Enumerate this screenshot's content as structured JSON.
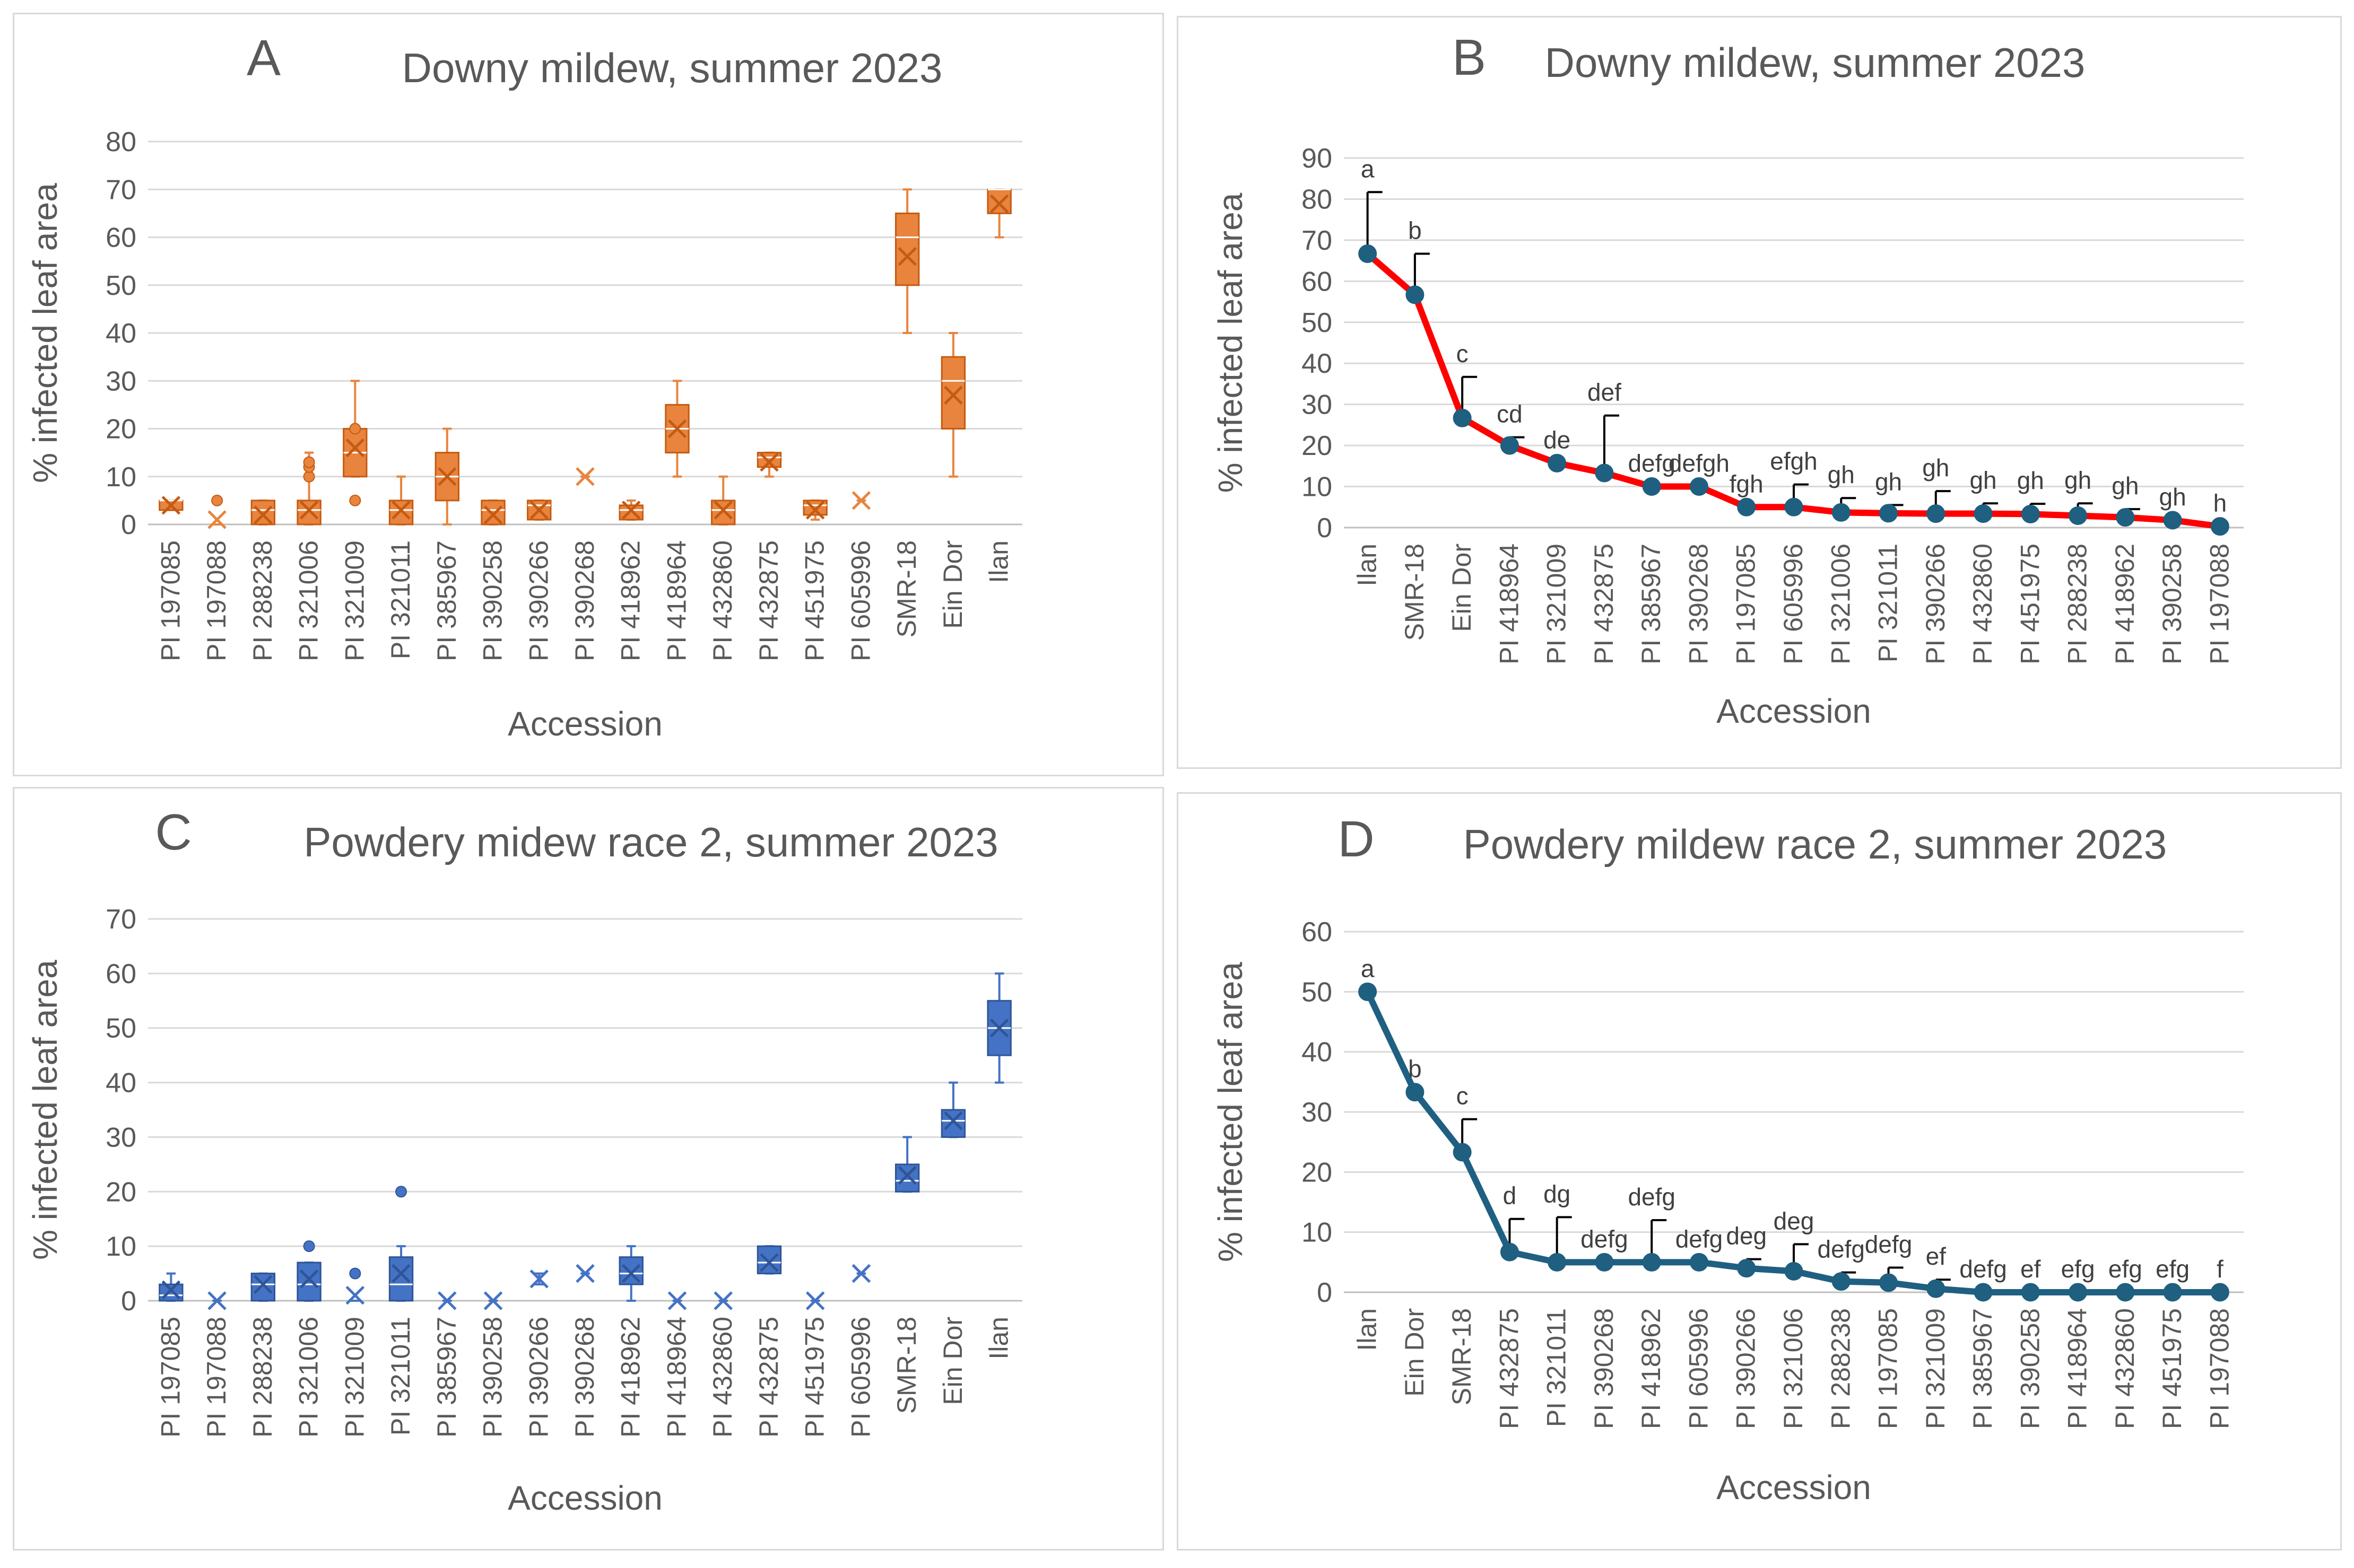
{
  "colors": {
    "orange": "#e8843e",
    "orangeDark": "#c55a11",
    "blue": "#4472c4",
    "blueDark": "#2f5597",
    "red": "#ff0000",
    "teal": "#1f6082",
    "axisText": "#595959",
    "grid": "#d9d9d9"
  },
  "chart_data": [
    {
      "type": "box",
      "panel_letter": "A",
      "title": "Downy mildew, summer 2023",
      "xlabel": "Accession",
      "ylabel": "% infected leaf area",
      "ylim": [
        0,
        80
      ],
      "yticks": [
        0,
        10,
        20,
        30,
        40,
        50,
        60,
        70,
        80
      ],
      "categories": [
        "PI 197085",
        "PI 197088",
        "PI 288238",
        "PI 321006",
        "PI 321009",
        "PI 321011",
        "PI 385967",
        "PI 390258",
        "PI 390266",
        "PI 390268",
        "PI 418962",
        "PI 418964",
        "PI 432860",
        "PI 432875",
        "PI 451975",
        "PI 605996",
        "SMR-18",
        "Ein Dor",
        "Ilan"
      ],
      "boxes": [
        {
          "min": 3,
          "q1": 3,
          "median": 5,
          "q3": 5,
          "max": 5,
          "mean": 4,
          "outliers": []
        },
        {
          "min": 0,
          "q1": 0,
          "median": 0,
          "q3": 0,
          "max": 0,
          "mean": 1,
          "outliers": [
            5
          ]
        },
        {
          "min": 0,
          "q1": 0,
          "median": 3,
          "q3": 5,
          "max": 5,
          "mean": 2,
          "outliers": []
        },
        {
          "min": 0,
          "q1": 0,
          "median": 3,
          "q3": 5,
          "max": 15,
          "mean": 3,
          "outliers": [
            10,
            12,
            13
          ]
        },
        {
          "min": 10,
          "q1": 10,
          "median": 15,
          "q3": 20,
          "max": 30,
          "mean": 16,
          "outliers": [
            5,
            20
          ]
        },
        {
          "min": 0,
          "q1": 0,
          "median": 3,
          "q3": 5,
          "max": 10,
          "mean": 3,
          "outliers": []
        },
        {
          "min": 0,
          "q1": 5,
          "median": 10,
          "q3": 15,
          "max": 20,
          "mean": 10,
          "outliers": []
        },
        {
          "min": 0,
          "q1": 0,
          "median": 3,
          "q3": 5,
          "max": 5,
          "mean": 2,
          "outliers": []
        },
        {
          "min": 1,
          "q1": 1,
          "median": 4,
          "q3": 5,
          "max": 5,
          "mean": 3,
          "outliers": []
        },
        {
          "min": 10,
          "q1": 10,
          "median": 10,
          "q3": 10,
          "max": 10,
          "mean": 10,
          "outliers": []
        },
        {
          "min": 1,
          "q1": 1,
          "median": 3,
          "q3": 4,
          "max": 5,
          "mean": 3,
          "outliers": []
        },
        {
          "min": 10,
          "q1": 15,
          "median": 20,
          "q3": 25,
          "max": 30,
          "mean": 20,
          "outliers": []
        },
        {
          "min": 0,
          "q1": 0,
          "median": 3,
          "q3": 5,
          "max": 10,
          "mean": 3,
          "outliers": []
        },
        {
          "min": 10,
          "q1": 12,
          "median": 14,
          "q3": 15,
          "max": 15,
          "mean": 13,
          "outliers": []
        },
        {
          "min": 1,
          "q1": 2,
          "median": 4,
          "q3": 5,
          "max": 5,
          "mean": 3,
          "outliers": []
        },
        {
          "min": 5,
          "q1": 5,
          "median": 5,
          "q3": 5,
          "max": 5,
          "mean": 5,
          "outliers": []
        },
        {
          "min": 40,
          "q1": 50,
          "median": 60,
          "q3": 65,
          "max": 70,
          "mean": 56,
          "outliers": []
        },
        {
          "min": 10,
          "q1": 20,
          "median": 30,
          "q3": 35,
          "max": 40,
          "mean": 27,
          "outliers": []
        },
        {
          "min": 60,
          "q1": 65,
          "median": 70,
          "q3": 70,
          "max": 70,
          "mean": 67,
          "outliers": []
        }
      ]
    },
    {
      "type": "line",
      "panel_letter": "B",
      "title": "Downy mildew, summer 2023",
      "xlabel": "Accession",
      "ylabel": "% infected leaf area",
      "ylim": [
        0,
        90
      ],
      "yticks": [
        0,
        10,
        20,
        30,
        40,
        50,
        60,
        70,
        80,
        90
      ],
      "categories": [
        "Ilan",
        "SMR-18",
        "Ein Dor",
        "PI 418964",
        "PI 321009",
        "PI 432875",
        "PI 385967",
        "PI 390268",
        "PI 197085",
        "PI 605996",
        "PI 321006",
        "PI 321011",
        "PI 390266",
        "PI 432860",
        "PI 451975",
        "PI 288238",
        "PI 418962",
        "PI 390258",
        "PI 197088"
      ],
      "values": [
        66.7,
        56.7,
        26.7,
        20,
        15.7,
        13.3,
        10,
        10,
        5,
        5,
        3.7,
        3.5,
        3.4,
        3.4,
        3.3,
        2.9,
        2.5,
        1.8,
        0.3
      ],
      "errors": [
        15,
        10,
        10,
        2,
        0,
        14,
        0,
        0,
        0,
        5.5,
        3.5,
        2,
        5.5,
        2.5,
        2.5,
        3,
        2,
        0,
        0
      ],
      "letters": [
        "a",
        "b",
        "c",
        "cd",
        "de",
        "def",
        "defg",
        "defgh",
        "fgh",
        "efgh",
        "gh",
        "gh",
        "gh",
        "gh",
        "gh",
        "gh",
        "gh",
        "gh",
        "h"
      ]
    },
    {
      "type": "box",
      "panel_letter": "C",
      "title": "Powdery midew race 2, summer 2023",
      "xlabel": "Accession",
      "ylabel": "% infected leaf area",
      "ylim": [
        0,
        70
      ],
      "yticks": [
        0,
        10,
        20,
        30,
        40,
        50,
        60,
        70
      ],
      "categories": [
        "PI 197085",
        "PI 197088",
        "PI 288238",
        "PI 321006",
        "PI 321009",
        "PI 321011",
        "PI 385967",
        "PI 390258",
        "PI 390266",
        "PI 390268",
        "PI 418962",
        "PI 418964",
        "PI 432860",
        "PI 432875",
        "PI 451975",
        "PI 605996",
        "SMR-18",
        "Ein Dor",
        "Ilan"
      ],
      "boxes": [
        {
          "min": 0,
          "q1": 0,
          "median": 1,
          "q3": 3,
          "max": 5,
          "mean": 2,
          "outliers": []
        },
        {
          "min": 0,
          "q1": 0,
          "median": 0,
          "q3": 0,
          "max": 0,
          "mean": 0,
          "outliers": []
        },
        {
          "min": 0,
          "q1": 0,
          "median": 3,
          "q3": 5,
          "max": 5,
          "mean": 3,
          "outliers": []
        },
        {
          "min": 0,
          "q1": 0,
          "median": 3,
          "q3": 7,
          "max": 7,
          "mean": 4,
          "outliers": [
            10
          ]
        },
        {
          "min": 0,
          "q1": 0,
          "median": 0,
          "q3": 0,
          "max": 0,
          "mean": 1,
          "outliers": [
            5
          ]
        },
        {
          "min": 0,
          "q1": 0,
          "median": 3,
          "q3": 8,
          "max": 10,
          "mean": 5,
          "outliers": [
            20
          ]
        },
        {
          "min": 0,
          "q1": 0,
          "median": 0,
          "q3": 0,
          "max": 0,
          "mean": 0,
          "outliers": []
        },
        {
          "min": 0,
          "q1": 0,
          "median": 0,
          "q3": 0,
          "max": 0,
          "mean": 0,
          "outliers": []
        },
        {
          "min": 3,
          "q1": 5,
          "median": 5,
          "q3": 5,
          "max": 5,
          "mean": 4,
          "outliers": []
        },
        {
          "min": 5,
          "q1": 5,
          "median": 5,
          "q3": 5,
          "max": 5,
          "mean": 5,
          "outliers": []
        },
        {
          "min": 0,
          "q1": 3,
          "median": 5,
          "q3": 8,
          "max": 10,
          "mean": 5,
          "outliers": []
        },
        {
          "min": 0,
          "q1": 0,
          "median": 0,
          "q3": 0,
          "max": 0,
          "mean": 0,
          "outliers": []
        },
        {
          "min": 0,
          "q1": 0,
          "median": 0,
          "q3": 0,
          "max": 0,
          "mean": 0,
          "outliers": []
        },
        {
          "min": 5,
          "q1": 5,
          "median": 7,
          "q3": 10,
          "max": 10,
          "mean": 7,
          "outliers": []
        },
        {
          "min": 0,
          "q1": 0,
          "median": 0,
          "q3": 0,
          "max": 0,
          "mean": 0,
          "outliers": []
        },
        {
          "min": 5,
          "q1": 5,
          "median": 5,
          "q3": 5,
          "max": 5,
          "mean": 5,
          "outliers": []
        },
        {
          "min": 20,
          "q1": 20,
          "median": 22,
          "q3": 25,
          "max": 30,
          "mean": 23,
          "outliers": []
        },
        {
          "min": 30,
          "q1": 30,
          "median": 33,
          "q3": 35,
          "max": 40,
          "mean": 33,
          "outliers": []
        },
        {
          "min": 40,
          "q1": 45,
          "median": 50,
          "q3": 55,
          "max": 60,
          "mean": 50,
          "outliers": []
        }
      ]
    },
    {
      "type": "line",
      "panel_letter": "D",
      "title": "Powdery mildew race 2, summer 2023",
      "xlabel": "Accession",
      "ylabel": "% infected leaf area",
      "ylim": [
        0,
        60
      ],
      "yticks": [
        0,
        10,
        20,
        30,
        40,
        50,
        60
      ],
      "categories": [
        "Ilan",
        "Ein Dor",
        "SMR-18",
        "PI 432875",
        "PI 321011",
        "PI 390268",
        "PI 418962",
        "PI 605996",
        "PI 390266",
        "PI 321006",
        "PI 288238",
        "PI 197085",
        "PI 321009",
        "PI 385967",
        "PI 390258",
        "PI 418964",
        "PI 432860",
        "PI 451975",
        "PI 197088"
      ],
      "values": [
        50,
        33.3,
        23.3,
        6.7,
        5,
        5,
        5,
        5,
        4,
        3.5,
        1.8,
        1.6,
        0.6,
        0,
        0,
        0,
        0,
        0,
        0
      ],
      "errors": [
        0,
        0,
        5.5,
        5.5,
        7.5,
        0,
        7,
        0,
        1.5,
        4.5,
        1.5,
        2.5,
        1.5,
        0,
        0,
        0,
        0,
        0,
        0
      ],
      "letters": [
        "a",
        "b",
        "c",
        "d",
        "dg",
        "defg",
        "defg",
        "defg",
        "deg",
        "deg",
        "defg",
        "defg",
        "ef",
        "defg",
        "ef",
        "efg",
        "efg",
        "efg",
        "f"
      ]
    }
  ]
}
